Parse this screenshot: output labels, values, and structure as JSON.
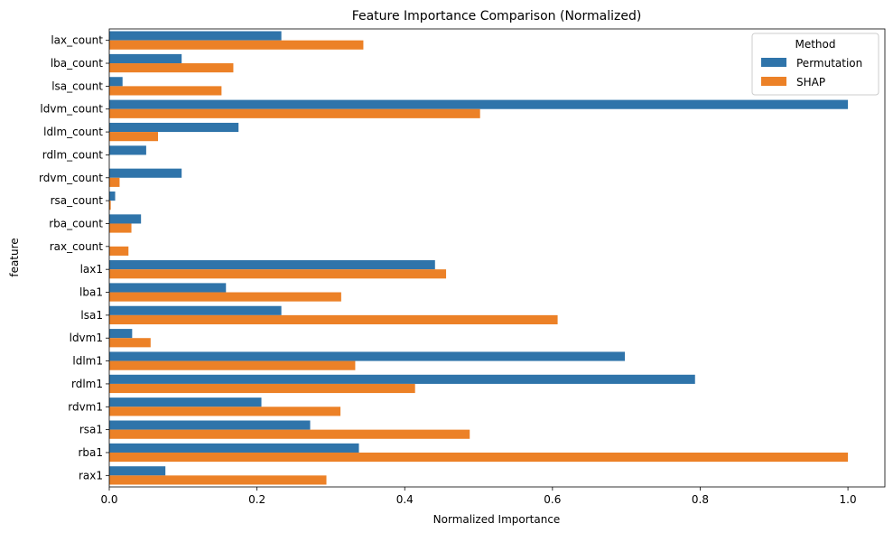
{
  "chart_data": {
    "type": "bar",
    "orientation": "horizontal",
    "title": "Feature Importance Comparison (Normalized)",
    "xlabel": "Normalized Importance",
    "ylabel": "feature",
    "xlim": [
      0,
      1.05
    ],
    "xticks": [
      0.0,
      0.2,
      0.4,
      0.6,
      0.8,
      1.0
    ],
    "xtick_labels": [
      "0.0",
      "0.2",
      "0.4",
      "0.6",
      "0.8",
      "1.0"
    ],
    "grid": false,
    "legend": {
      "title": "Method",
      "position": "top-right"
    },
    "categories": [
      "lax_count",
      "lba_count",
      "lsa_count",
      "ldvm_count",
      "ldlm_count",
      "rdlm_count",
      "rdvm_count",
      "rsa_count",
      "rba_count",
      "rax_count",
      "lax1",
      "lba1",
      "lsa1",
      "ldvm1",
      "ldlm1",
      "rdlm1",
      "rdvm1",
      "rsa1",
      "rba1",
      "rax1"
    ],
    "series": [
      {
        "name": "Permutation",
        "color": "#2f74aa",
        "values": [
          0.233,
          0.098,
          0.018,
          1.0,
          0.175,
          0.05,
          0.098,
          0.008,
          0.043,
          0.0,
          0.441,
          0.158,
          0.233,
          0.031,
          0.698,
          0.793,
          0.206,
          0.272,
          0.338,
          0.076
        ]
      },
      {
        "name": "SHAP",
        "color": "#ec8127",
        "values": [
          0.344,
          0.168,
          0.152,
          0.502,
          0.066,
          0.0,
          0.014,
          0.002,
          0.03,
          0.026,
          0.456,
          0.314,
          0.607,
          0.056,
          0.333,
          0.414,
          0.313,
          0.488,
          1.0,
          0.294
        ]
      }
    ]
  }
}
